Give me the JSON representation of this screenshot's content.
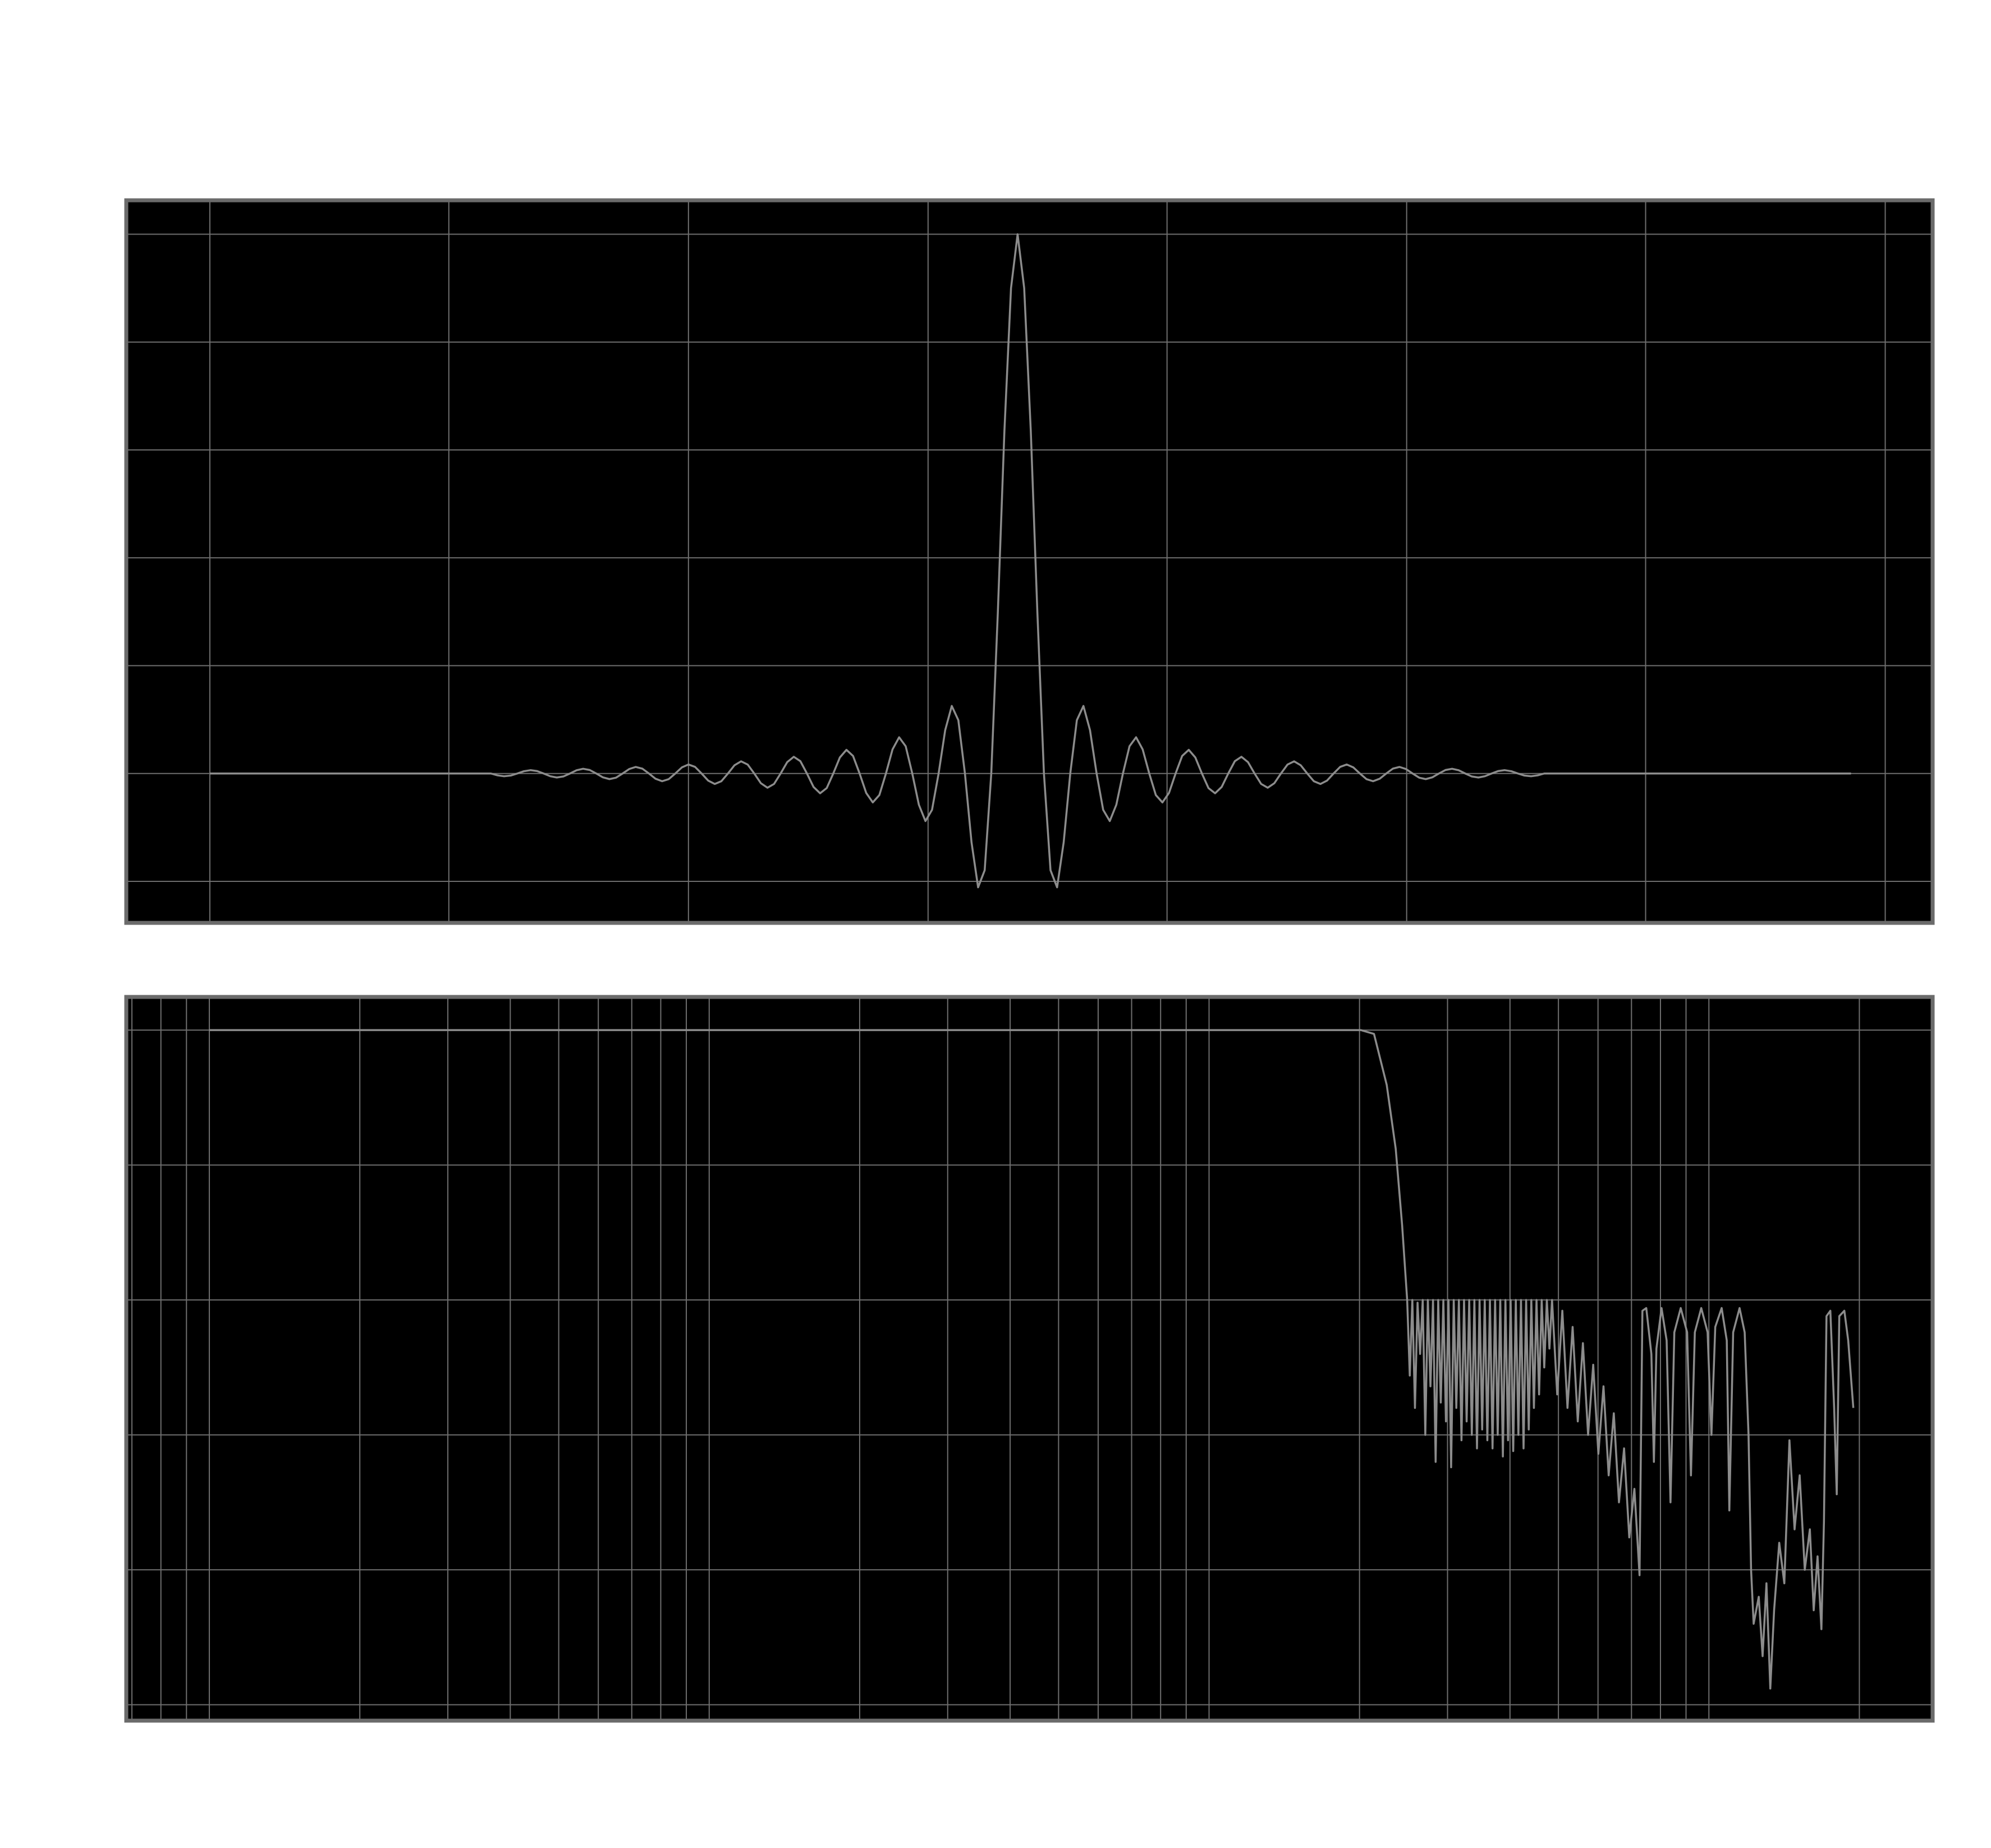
{
  "chart_data": [
    {
      "type": "line",
      "x": [
        -122.7,
        -80,
        -79,
        -78,
        -77,
        -76,
        -75,
        -74,
        -73,
        -72,
        -71,
        -70,
        -69,
        -68,
        -67,
        -66,
        -65,
        -64,
        -63,
        -62,
        -61,
        -60,
        -59,
        -58,
        -57,
        -56,
        -55,
        -54,
        -53,
        -52,
        -51,
        -50,
        -49,
        -48,
        -47,
        -46,
        -45,
        -44,
        -43,
        -42,
        -41,
        -40,
        -39,
        -38,
        -37,
        -36,
        -35,
        -34,
        -33,
        -32,
        -31,
        -30,
        -29,
        -28,
        -27,
        -26,
        -25,
        -24,
        -23,
        -22,
        -21,
        -20,
        -19,
        -18,
        -17,
        -16,
        -15,
        -14,
        -13,
        -12,
        -11,
        -10,
        -9,
        -8,
        -7,
        -6,
        -5,
        -4,
        -3,
        -2,
        -1,
        0,
        1,
        2,
        3,
        4,
        5,
        6,
        7,
        8,
        9,
        10,
        11,
        12,
        13,
        14,
        15,
        16,
        17,
        18,
        19,
        20,
        21,
        22,
        23,
        24,
        25,
        26,
        27,
        28,
        29,
        30,
        31,
        32,
        33,
        34,
        35,
        36,
        37,
        38,
        39,
        40,
        41,
        42,
        43,
        44,
        45,
        46,
        47,
        48,
        49,
        50,
        51,
        52,
        53,
        54,
        55,
        56,
        57,
        58,
        59,
        60,
        61,
        62,
        63,
        64,
        65,
        66,
        67,
        68,
        69,
        70,
        71,
        72,
        73,
        74,
        75,
        76,
        77,
        78,
        79,
        80,
        126.6
      ],
      "series": [
        {
          "color": "#8c8c8c",
          "values": [
            0,
            0,
            -0.0034,
            -0.0051,
            -0.0038,
            0,
            0.0042,
            0.0062,
            0.0046,
            0,
            -0.005,
            -0.0074,
            -0.0055,
            0,
            0.006,
            0.0088,
            0.0065,
            0,
            -0.0071,
            -0.0104,
            -0.0077,
            0,
            0.0083,
            0.0122,
            0.009,
            0,
            -0.0097,
            -0.0143,
            -0.0105,
            0,
            0.0113,
            0.0167,
            0.0123,
            0,
            -0.0132,
            -0.0194,
            -0.0143,
            0,
            0.0154,
            0.0226,
            0.0166,
            0,
            -0.018,
            -0.0264,
            -0.0194,
            0,
            0.0211,
            0.031,
            0.0229,
            0,
            -0.0249,
            -0.0367,
            -0.0271,
            0,
            0.0297,
            0.0439,
            0.0326,
            0,
            -0.036,
            -0.0536,
            -0.04,
            0,
            0.0447,
            0.0672,
            0.0506,
            0,
            -0.0579,
            -0.0882,
            -0.0674,
            0,
            0.0803,
            0.1253,
            0.0988,
            0,
            -0.1276,
            -0.211,
            -0.1794,
            0,
            0.2997,
            0.6362,
            0.9001,
            1,
            0.9001,
            0.6362,
            0.2997,
            0,
            -0.1794,
            -0.211,
            -0.1276,
            0,
            0.0988,
            0.1253,
            0.0803,
            0,
            -0.0674,
            -0.0882,
            -0.0579,
            0,
            0.0506,
            0.0672,
            0.0447,
            0,
            -0.04,
            -0.0536,
            -0.036,
            0,
            0.0326,
            0.0439,
            0.0297,
            0,
            -0.0271,
            -0.0367,
            -0.0249,
            0,
            0.0229,
            0.031,
            0.0211,
            0,
            -0.0194,
            -0.0264,
            -0.018,
            0,
            0.0166,
            0.0226,
            0.0154,
            0,
            -0.0143,
            -0.0194,
            -0.0132,
            0,
            0.0123,
            0.0167,
            0.0113,
            0,
            -0.0105,
            -0.0143,
            -0.0097,
            0,
            0.009,
            0.0122,
            0.0083,
            0,
            -0.0077,
            -0.0104,
            -0.0071,
            0,
            0.0065,
            0.0088,
            0.006,
            0,
            -0.0055,
            -0.0074,
            -0.005,
            0,
            0.0046,
            0.0062,
            0.0042,
            0,
            -0.0038,
            -0.0051,
            -0.0034,
            0,
            0
          ]
        }
      ],
      "xlim": [
        -135.4,
        139
      ],
      "ylim": [
        -0.277,
        1.063
      ],
      "xticks": [
        -122.7,
        -86.4,
        -50,
        -13.6,
        22.7,
        59.1,
        95.4,
        131.8
      ],
      "yticks": [
        -0.2,
        0,
        0.2,
        0.4,
        0.6,
        0.8,
        1
      ],
      "grid": true
    },
    {
      "type": "line",
      "x_scale": "log",
      "x": [
        10,
        1374,
        2014,
        2138,
        2267,
        2363,
        2434,
        2491,
        2521,
        2551,
        2582,
        2613,
        2644,
        2676,
        2708,
        2740,
        2773,
        2806,
        2840,
        2874,
        2908,
        2943,
        2978,
        3014,
        3050,
        3087,
        3124,
        3161,
        3199,
        3237,
        3276,
        3315,
        3355,
        3395,
        3436,
        3477,
        3519,
        3561,
        3604,
        3647,
        3691,
        3735,
        3780,
        3825,
        3871,
        3917,
        3964,
        4012,
        4060,
        4109,
        4158,
        4208,
        4258,
        4309,
        4361,
        4413,
        4466,
        4520,
        4574,
        4629,
        4684,
        4740,
        4797,
        4855,
        4972,
        5091,
        5213,
        5338,
        5466,
        5597,
        5732,
        5869,
        6010,
        6154,
        6302,
        6453,
        6608,
        6766,
        6929,
        7095,
        7265,
        7362,
        7494,
        7672,
        7762,
        7853,
        8040,
        8231,
        8379,
        8528,
        8783,
        9046,
        9207,
        9373,
        9654,
        9940,
        10118,
        10298,
        10606,
        10858,
        10987,
        11183,
        11518,
        11792,
        12003,
        12145,
        12289,
        12582,
        12807,
        13036,
        13269,
        13504,
        13826,
        14155,
        14492,
        14839,
        15192,
        15553,
        15922,
        16207,
        16497,
        16792,
        16990,
        17190,
        17498,
        17807,
        18021,
        18234,
        18663,
        18997,
        19450
      ],
      "series": [
        {
          "color": "#8c8c8c",
          "values": [
            0,
            0,
            0,
            -1.4,
            -20.3,
            -44,
            -72.4,
            -100,
            -128,
            -100,
            -140,
            -101,
            -120,
            -100,
            -150,
            -100,
            -132,
            -100,
            -160,
            -100,
            -138,
            -100,
            -145,
            -100,
            -162,
            -100,
            -140,
            -100,
            -152,
            -100,
            -145,
            -100,
            -150,
            -100,
            -155,
            -100,
            -148,
            -100,
            -152,
            -100,
            -155,
            -100,
            -150,
            -100,
            -158,
            -100,
            -152,
            -100,
            -156,
            -100,
            -150,
            -100,
            -155,
            -100,
            -148,
            -100,
            -140,
            -100,
            -135,
            -100,
            -125,
            -100,
            -118,
            -100,
            -135,
            -104,
            -140,
            -110,
            -145,
            -116,
            -150,
            -124,
            -157,
            -132,
            -165,
            -142,
            -175,
            -155,
            -188,
            -170,
            -202,
            -104,
            -103,
            -120,
            -160,
            -118,
            -103,
            -115,
            -175,
            -112,
            -103,
            -112,
            -165,
            -112,
            -103,
            -112,
            -150,
            -110,
            -103,
            -115,
            -178,
            -112,
            -103,
            -112,
            -150,
            -200,
            -220,
            -210,
            -232,
            -205,
            -244,
            -215,
            -190,
            -205,
            -152,
            -185,
            -165,
            -200,
            -185,
            -215,
            -195,
            -222,
            -182,
            -106,
            -104,
            -140,
            -172,
            -106,
            -104,
            -115,
            -140
          ]
        }
      ],
      "xlim": [
        6.82,
        28030
      ],
      "ylim": [
        -255.9,
        12.3
      ],
      "xticks": [
        7,
        8,
        9,
        10,
        20,
        30,
        40,
        50,
        60,
        70,
        80,
        90,
        100,
        200,
        300,
        400,
        500,
        600,
        700,
        800,
        900,
        1000,
        2000,
        3000,
        4000,
        5000,
        6000,
        7000,
        8000,
        9000,
        10000,
        20000
      ],
      "yticks": [
        0,
        -50,
        -100,
        -150,
        -200,
        -250
      ],
      "grid": true
    }
  ]
}
